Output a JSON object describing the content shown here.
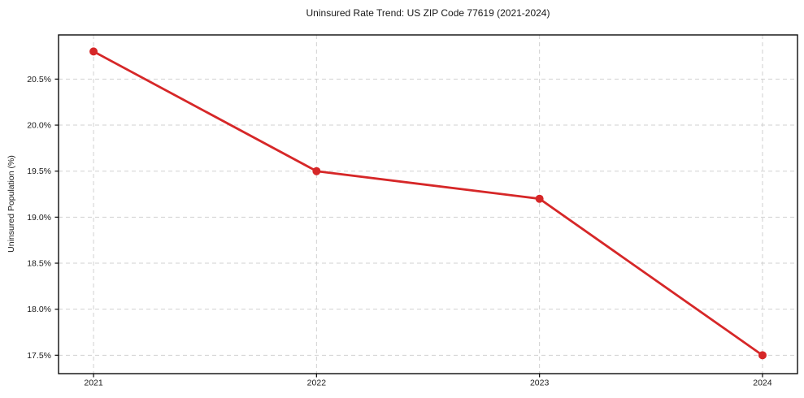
{
  "chart_data": {
    "type": "line",
    "title": "Uninsured Rate Trend: US ZIP Code 77619 (2021-2024)",
    "xlabel": "",
    "ylabel": "Uninsured Population (%)",
    "x": [
      2021,
      2022,
      2023,
      2024
    ],
    "x_tick_labels": [
      "2021",
      "2022",
      "2023",
      "2024"
    ],
    "series": [
      {
        "values": [
          20.8,
          19.5,
          19.2,
          17.5
        ],
        "color": "#d62728"
      }
    ],
    "y_ticks": [
      17.5,
      18.0,
      18.5,
      19.0,
      19.5,
      20.0,
      20.5
    ],
    "y_tick_labels": [
      "17.5%",
      "18.0%",
      "18.5%",
      "19.0%",
      "19.5%",
      "20.0%",
      "20.5%"
    ],
    "xlim": [
      2020.843,
      2024.157
    ],
    "ylim": [
      17.3,
      20.98
    ],
    "grid": "both, dashed",
    "legend": "none",
    "colors": {
      "line": "#d62728",
      "grid": "#cccccc",
      "spine": "#0a0a0a",
      "text": "#1a1a1a",
      "background": "#ffffff"
    }
  }
}
